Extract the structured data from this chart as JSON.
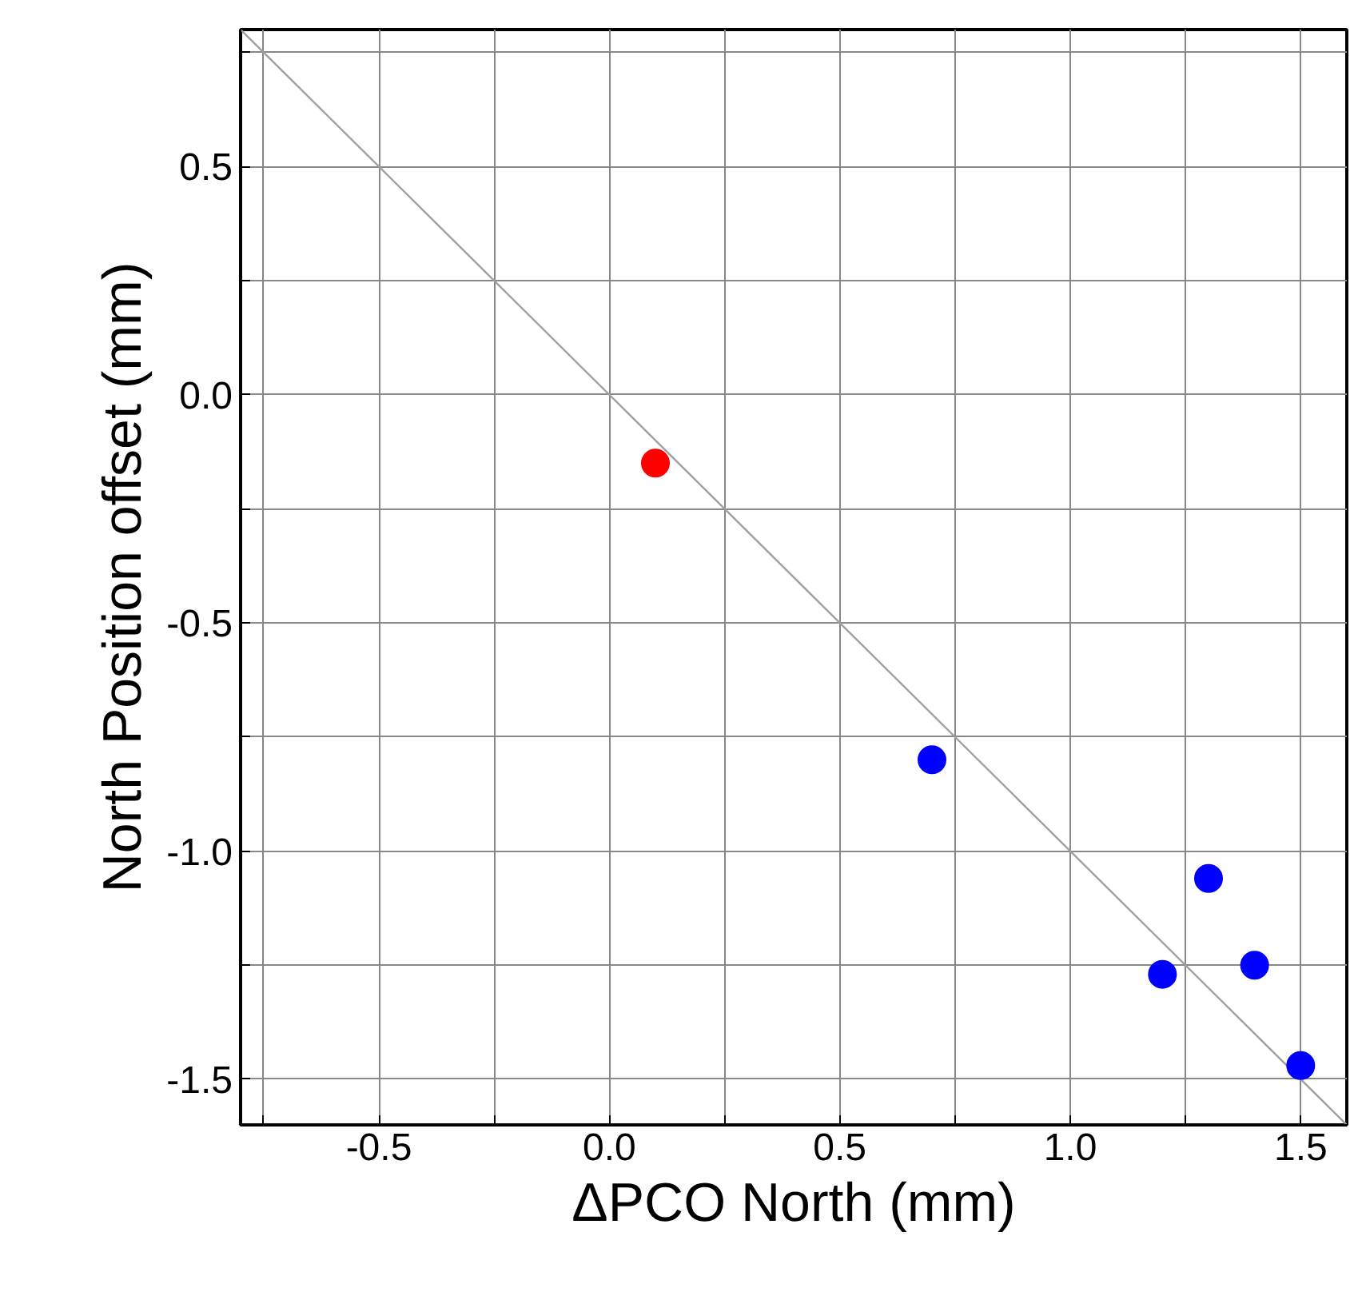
{
  "chart_data": {
    "type": "scatter",
    "xlabel": "ΔPCO North (mm)",
    "ylabel": "North Position offset (mm)",
    "xlim": [
      -0.8,
      1.6
    ],
    "ylim": [
      -1.6,
      0.8
    ],
    "xticks": [
      {
        "value": -0.75,
        "label": null
      },
      {
        "value": -0.5,
        "label": "-0.5"
      },
      {
        "value": -0.25,
        "label": null
      },
      {
        "value": 0,
        "label": "0.0"
      },
      {
        "value": 0.25,
        "label": null
      },
      {
        "value": 0.5,
        "label": "0.5"
      },
      {
        "value": 0.75,
        "label": null
      },
      {
        "value": 1,
        "label": "1.0"
      },
      {
        "value": 1.25,
        "label": null
      },
      {
        "value": 1.5,
        "label": "1.5"
      }
    ],
    "yticks": [
      {
        "value": -1.5,
        "label": "-1.5"
      },
      {
        "value": -1.25,
        "label": null
      },
      {
        "value": -1,
        "label": "-1.0"
      },
      {
        "value": -0.75,
        "label": null
      },
      {
        "value": -0.5,
        "label": "-0.5"
      },
      {
        "value": -0.25,
        "label": null
      },
      {
        "value": 0,
        "label": "0.0"
      },
      {
        "value": 0.25,
        "label": null
      },
      {
        "value": 0.5,
        "label": "0.5"
      },
      {
        "value": 0.75,
        "label": null
      }
    ],
    "grid": true,
    "marker": "circle",
    "series": [
      {
        "type": "line",
        "marker": "none",
        "color": "#a0a0a0",
        "x": [
          -0.8,
          1.6
        ],
        "values": [
          0.8,
          -1.6
        ]
      },
      {
        "color": "#ff0000",
        "x": [
          0.1
        ],
        "values": [
          -0.15
        ]
      },
      {
        "color": "#0000ff",
        "x": [
          0.7,
          1.2,
          1.3,
          1.4,
          1.5
        ],
        "values": [
          -0.8,
          -1.27,
          -1.06,
          -1.25,
          -1.47
        ]
      }
    ]
  }
}
